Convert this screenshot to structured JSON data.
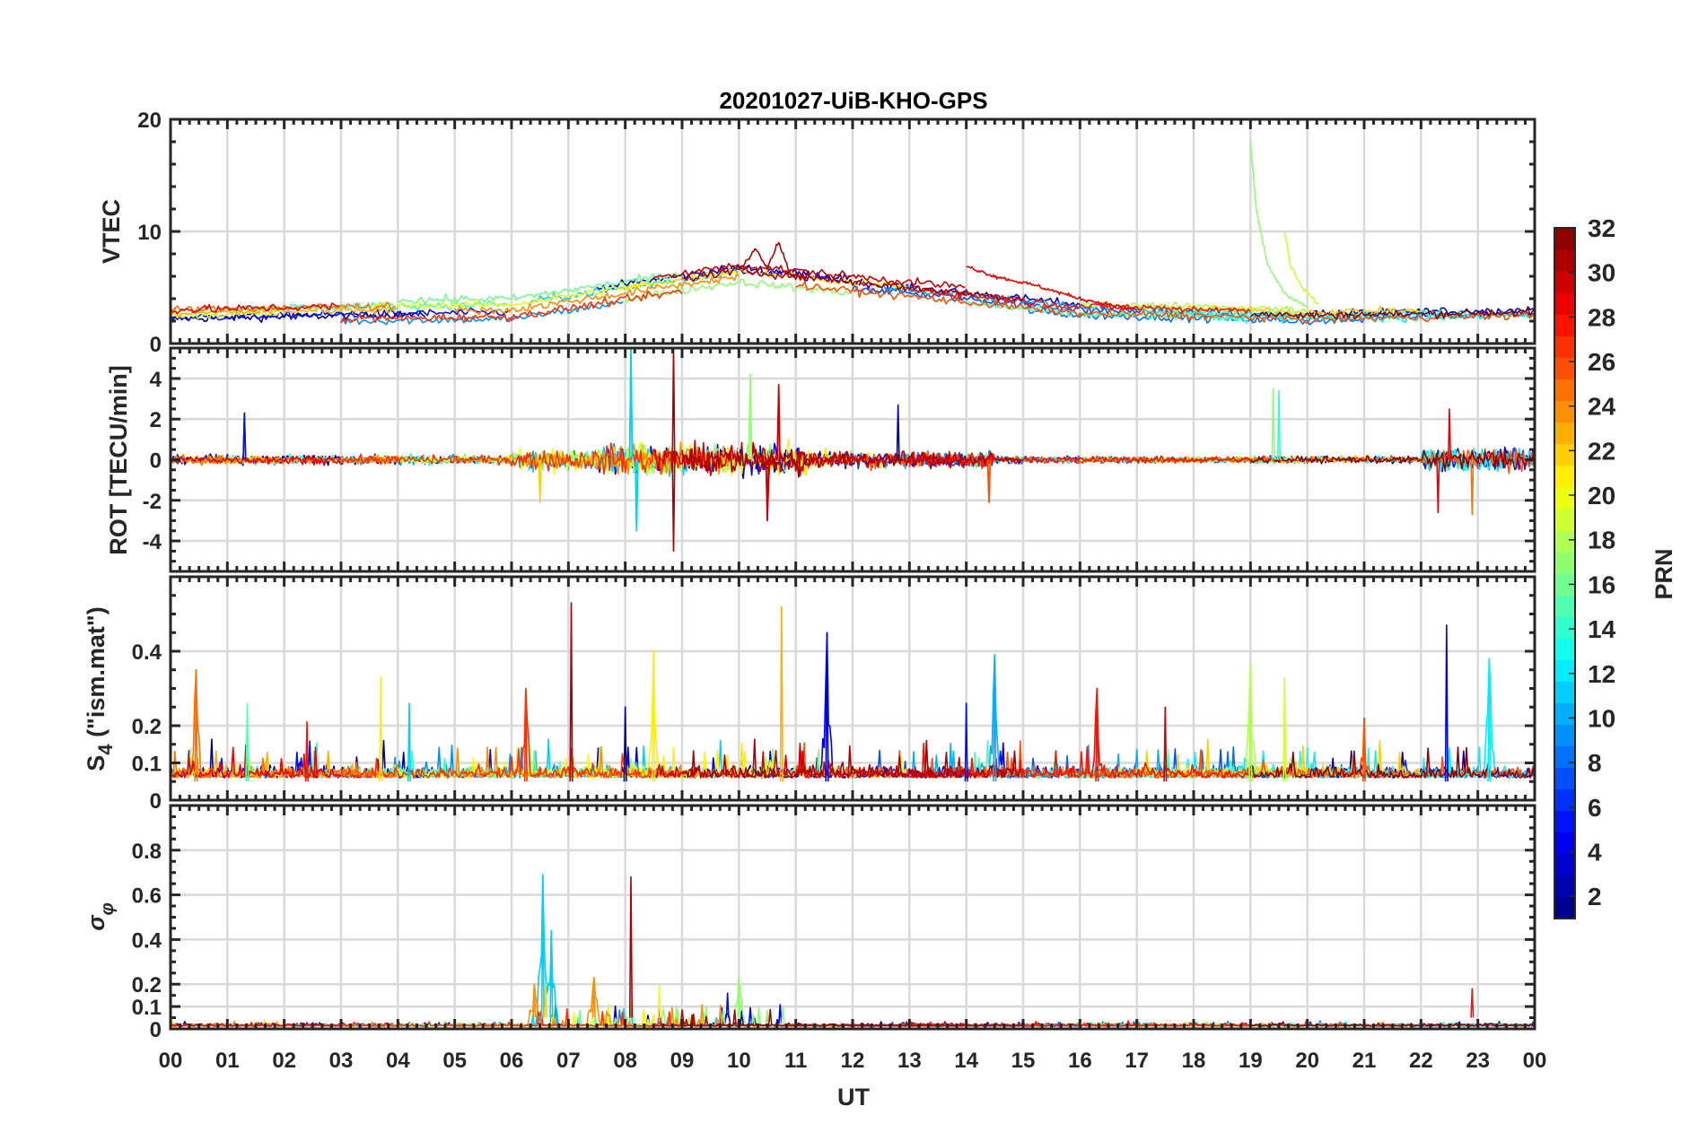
{
  "chart_data": {
    "type": "line",
    "title": "20201027-UiB-KHO-GPS",
    "xlabel": "UT",
    "xlim": [
      0,
      24
    ],
    "x_tick_labels": [
      "00",
      "01",
      "02",
      "03",
      "04",
      "05",
      "06",
      "07",
      "08",
      "09",
      "10",
      "11",
      "12",
      "13",
      "14",
      "15",
      "16",
      "17",
      "18",
      "19",
      "20",
      "21",
      "22",
      "23",
      "00"
    ],
    "grid": true,
    "colorbar": {
      "label": "PRN",
      "range": [
        1,
        32
      ],
      "colormap": "jet",
      "levels": 32,
      "tick_labels": [
        "2",
        "4",
        "6",
        "8",
        "10",
        "12",
        "14",
        "16",
        "18",
        "20",
        "22",
        "24",
        "26",
        "28",
        "30",
        "32"
      ]
    },
    "panels": [
      {
        "id": "vtec",
        "ylabel": [
          "VTEC"
        ],
        "ylim": [
          0,
          20
        ],
        "yticks": [
          0,
          10,
          20
        ],
        "tick_labels": [
          "0",
          "10",
          "20"
        ]
      },
      {
        "id": "rot",
        "ylabel": [
          "ROT [TECU/min]"
        ],
        "ylim": [
          -5.5,
          5.5
        ],
        "yticks": [
          -4,
          -2,
          0,
          2,
          4
        ],
        "tick_labels": [
          "-4",
          "-2",
          "0",
          "2",
          "4"
        ]
      },
      {
        "id": "s4",
        "ylabel": [
          "S",
          "4",
          " (\"ism.mat\")"
        ],
        "ylim": [
          0,
          0.6
        ],
        "yticks": [
          0,
          0.1,
          0.2,
          0.4
        ],
        "tick_labels": [
          "0",
          "0.1",
          "0.2",
          "0.4"
        ]
      },
      {
        "id": "sigma",
        "ylabel": [
          "σ",
          "φ"
        ],
        "ylim": [
          0,
          1
        ],
        "yticks": [
          0,
          0.1,
          0.2,
          0.4,
          0.6,
          0.8
        ],
        "tick_labels": [
          "0",
          "0.1",
          "0.2",
          "0.4",
          "0.6",
          "0.8"
        ]
      }
    ],
    "vtec_profile": [
      [
        0,
        2.5
      ],
      [
        3,
        2.8
      ],
      [
        6,
        3
      ],
      [
        8,
        4.5
      ],
      [
        10,
        6
      ],
      [
        12,
        5
      ],
      [
        14,
        4
      ],
      [
        16,
        3
      ],
      [
        18,
        2.8
      ],
      [
        20,
        2.5
      ],
      [
        24,
        2.8
      ]
    ],
    "passes": [
      {
        "prn": 1,
        "t0": 0,
        "t1": 4.5,
        "vtec_offset": -0.3
      },
      {
        "prn": 2,
        "t0": 20,
        "t1": 24,
        "vtec_offset": 0.2
      },
      {
        "prn": 3,
        "t0": 7.5,
        "t1": 12,
        "vtec_offset": 0.8
      },
      {
        "prn": 4,
        "t0": 10,
        "t1": 16,
        "vtec_offset": 0.5
      },
      {
        "prn": 5,
        "t0": 0,
        "t1": 6,
        "vtec_offset": -0.2
      },
      {
        "prn": 6,
        "t0": 21,
        "t1": 24,
        "vtec_offset": -0.2
      },
      {
        "prn": 7,
        "t0": 12,
        "t1": 20,
        "vtec_offset": 0
      },
      {
        "prn": 8,
        "t0": 15,
        "t1": 21,
        "vtec_offset": -0.5
      },
      {
        "prn": 9,
        "t0": 3,
        "t1": 8,
        "vtec_offset": -0.8
      },
      {
        "prn": 10,
        "t0": 12.5,
        "t1": 17.5,
        "vtec_offset": 0.3
      },
      {
        "prn": 11,
        "t0": 6.3,
        "t1": 10,
        "vtec_offset": 0.5
      },
      {
        "prn": 12,
        "t0": 18,
        "t1": 24,
        "vtec_offset": -0.3
      },
      {
        "prn": 13,
        "t0": 17,
        "t1": 23,
        "vtec_offset": 0
      },
      {
        "prn": 14,
        "t0": 1,
        "t1": 6,
        "vtec_offset": 0.5
      },
      {
        "prn": 15,
        "t0": 14,
        "t1": 19,
        "vtec_offset": -0.4
      },
      {
        "prn": 16,
        "t0": 4,
        "t1": 9,
        "vtec_offset": 1.0
      },
      {
        "prn": 17,
        "t0": 8,
        "t1": 12,
        "vtec_offset": -0.5
      },
      {
        "prn": 18,
        "t0": 16,
        "t1": 20,
        "vtec_offset": 0.5
      },
      {
        "prn": 19,
        "t0": 0,
        "t1": 2,
        "vtec_offset": 0
      },
      {
        "prn": 20,
        "t0": 3.5,
        "t1": 8.5,
        "vtec_offset": 0.5
      },
      {
        "prn": 21,
        "t0": 8,
        "t1": 13,
        "vtec_offset": 0.5
      },
      {
        "prn": 22,
        "t0": 17,
        "t1": 22,
        "vtec_offset": 0.3
      },
      {
        "prn": 23,
        "t0": 0,
        "t1": 4,
        "vtec_offset": 0.2
      },
      {
        "prn": 24,
        "t0": 5,
        "t1": 10,
        "vtec_offset": 0
      },
      {
        "prn": 25,
        "t0": 0,
        "t1": 4,
        "vtec_offset": 0.5
      },
      {
        "prn": 26,
        "t0": 11,
        "t1": 24,
        "vtec_offset": -0.3
      },
      {
        "prn": 27,
        "t0": 3,
        "t1": 9,
        "vtec_offset": -0.6
      },
      {
        "prn": 28,
        "t0": 13,
        "t1": 19,
        "vtec_offset": 0.3
      },
      {
        "prn": 29,
        "t0": 0,
        "t1": 3,
        "vtec_offset": 0.5
      },
      {
        "prn": 30,
        "t0": 8.5,
        "t1": 14,
        "vtec_offset": 1.0
      },
      {
        "prn": 31,
        "t0": 9,
        "t1": 15,
        "vtec_offset": 0.5
      },
      {
        "prn": 32,
        "t0": 19,
        "t1": 24,
        "vtec_offset": 0
      }
    ],
    "vtec_special": [
      {
        "prn": 17,
        "points": [
          [
            19.0,
            18
          ],
          [
            19.1,
            12
          ],
          [
            19.3,
            7
          ],
          [
            19.6,
            4.5
          ],
          [
            20.0,
            3.2
          ]
        ]
      },
      {
        "prn": 19,
        "points": [
          [
            19.6,
            10
          ],
          [
            19.7,
            7
          ],
          [
            19.9,
            5
          ],
          [
            20.2,
            3.5
          ]
        ]
      },
      {
        "prn": 31,
        "points": [
          [
            10.0,
            6.5
          ],
          [
            10.3,
            8.5
          ],
          [
            10.5,
            6.8
          ],
          [
            10.7,
            9.1
          ],
          [
            10.9,
            6.2
          ],
          [
            11.2,
            5.8
          ]
        ]
      },
      {
        "prn": 29,
        "points": [
          [
            14.0,
            6.9
          ],
          [
            14.5,
            6.0
          ],
          [
            15.2,
            5.2
          ],
          [
            16.0,
            4.0
          ],
          [
            17.0,
            3.0
          ]
        ]
      }
    ],
    "rot_spikes": [
      [
        11,
        8.1,
        5.5
      ],
      [
        11,
        8.2,
        -3.5
      ],
      [
        31,
        8.85,
        5.5
      ],
      [
        31,
        8.85,
        -4.5
      ],
      [
        17,
        10.2,
        4.2
      ],
      [
        30,
        10.7,
        3.7
      ],
      [
        30,
        10.5,
        -3.0
      ],
      [
        5,
        1.3,
        2.3
      ],
      [
        17,
        19.4,
        3.5
      ],
      [
        14,
        19.5,
        3.4
      ],
      [
        2,
        12.8,
        2.7
      ],
      [
        25,
        22.9,
        -2.7
      ],
      [
        29,
        22.3,
        -2.6
      ],
      [
        29,
        22.5,
        2.5
      ],
      [
        22,
        6.5,
        -2.1
      ],
      [
        26,
        14.4,
        -2.1
      ]
    ],
    "s4_peaks": [
      [
        25,
        0.45,
        0.35
      ],
      [
        31,
        7.05,
        0.53
      ],
      [
        23,
        10.75,
        0.52
      ],
      [
        4,
        11.55,
        0.45
      ],
      [
        10,
        14.5,
        0.39
      ],
      [
        21,
        8.5,
        0.4
      ],
      [
        4,
        22.45,
        0.47
      ],
      [
        12,
        23.2,
        0.38
      ],
      [
        18,
        19.0,
        0.37
      ],
      [
        19,
        19.6,
        0.33
      ],
      [
        21,
        3.7,
        0.33
      ],
      [
        27,
        6.25,
        0.3
      ],
      [
        28,
        16.3,
        0.3
      ],
      [
        26,
        21.0,
        0.22
      ],
      [
        5,
        14.0,
        0.26
      ],
      [
        30,
        17.5,
        0.25
      ],
      [
        15,
        1.35,
        0.26
      ],
      [
        11,
        4.2,
        0.26
      ],
      [
        2,
        8.0,
        0.25
      ],
      [
        28,
        2.4,
        0.21
      ]
    ],
    "sigma_peaks": [
      [
        11,
        6.55,
        0.69
      ],
      [
        11,
        6.7,
        0.44
      ],
      [
        31,
        8.1,
        0.68
      ],
      [
        24,
        6.4,
        0.2
      ],
      [
        24,
        7.45,
        0.23
      ],
      [
        20,
        8.6,
        0.19
      ],
      [
        5,
        9.8,
        0.16
      ],
      [
        17,
        10.0,
        0.23
      ],
      [
        28,
        22.9,
        0.18
      ],
      [
        22,
        6.6,
        0.2
      ]
    ]
  }
}
